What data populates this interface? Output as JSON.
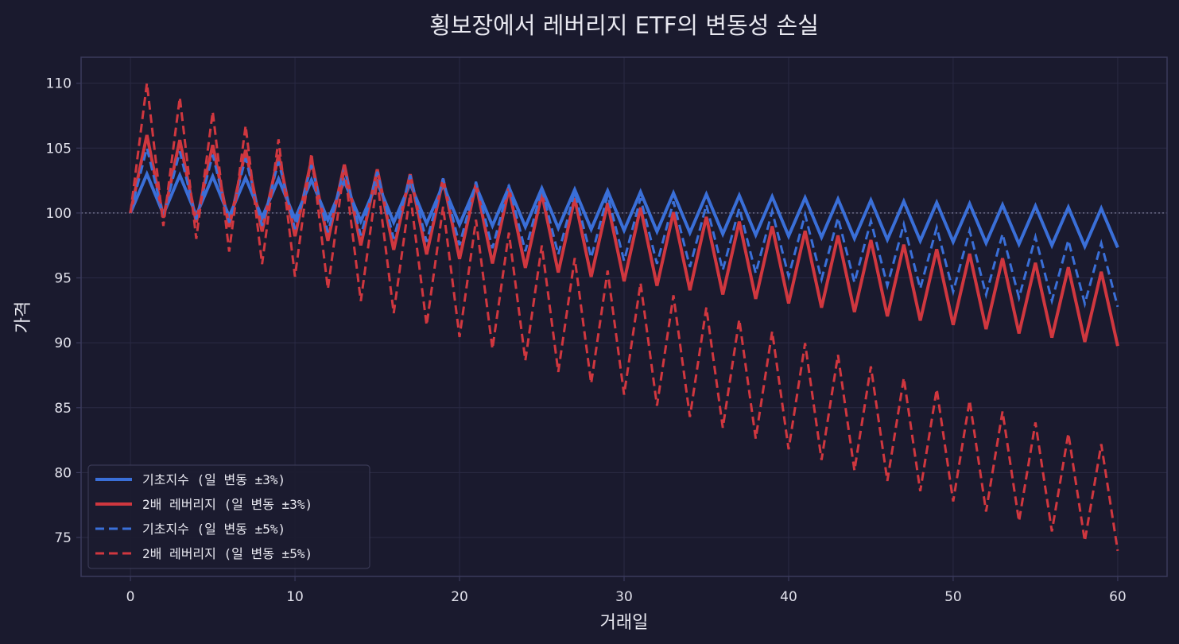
{
  "colors": {
    "background": "#1a1a2e",
    "grid": "#2a2a44",
    "frame": "#3a3a5c",
    "reference": "#7a7a96",
    "text": "#e8e8f0",
    "base_index": "#3a6fd8",
    "leveraged": "#d0373f"
  },
  "chart_data": {
    "type": "line",
    "title": "횡보장에서 레버리지 ETF의 변동성 손실",
    "xlabel": "거래일",
    "ylabel": "가격",
    "xlim": [
      -3,
      63
    ],
    "ylim": [
      72,
      112
    ],
    "x_ticks": [
      0,
      10,
      20,
      30,
      40,
      50,
      60
    ],
    "y_ticks": [
      75,
      80,
      85,
      90,
      95,
      100,
      105,
      110
    ],
    "grid": true,
    "reference_line": {
      "y": 100,
      "style": "dotted"
    },
    "legend_position": "bottom-left",
    "x": [
      0,
      1,
      2,
      3,
      4,
      5,
      6,
      7,
      8,
      9,
      10,
      11,
      12,
      13,
      14,
      15,
      16,
      17,
      18,
      19,
      20,
      21,
      22,
      23,
      24,
      25,
      26,
      27,
      28,
      29,
      30,
      31,
      32,
      33,
      34,
      35,
      36,
      37,
      38,
      39,
      40,
      41,
      42,
      43,
      44,
      45,
      46,
      47,
      48,
      49,
      50,
      51,
      52,
      53,
      54,
      55,
      56,
      57,
      58,
      59,
      60
    ],
    "series": [
      {
        "name": "기초지수 (일 변동 ±3%)",
        "color": "#3a6fd8",
        "style": "solid",
        "values": [
          100.0,
          103.0,
          99.91,
          102.91,
          99.82,
          102.82,
          99.73,
          102.72,
          99.64,
          102.63,
          99.55,
          102.54,
          99.46,
          102.45,
          99.37,
          102.35,
          99.28,
          102.26,
          99.19,
          102.17,
          99.1,
          102.08,
          99.02,
          101.99,
          98.93,
          101.9,
          98.84,
          101.8,
          98.75,
          101.71,
          98.66,
          101.62,
          98.57,
          101.53,
          98.48,
          101.44,
          98.39,
          101.35,
          98.31,
          101.26,
          98.22,
          101.17,
          98.13,
          101.07,
          98.04,
          100.98,
          97.95,
          100.89,
          97.86,
          100.8,
          97.78,
          100.71,
          97.69,
          100.62,
          97.6,
          100.53,
          97.51,
          100.44,
          97.43,
          100.35,
          97.34
        ]
      },
      {
        "name": "2배 레버리지 (일 변동 ±3%)",
        "color": "#d0373f",
        "style": "solid",
        "values": [
          100.0,
          106.0,
          99.64,
          105.62,
          99.28,
          105.24,
          98.92,
          104.86,
          98.57,
          104.48,
          98.21,
          104.1,
          97.86,
          103.73,
          97.51,
          103.36,
          97.16,
          102.99,
          96.81,
          102.62,
          96.46,
          102.25,
          96.11,
          101.88,
          95.77,
          101.51,
          95.42,
          101.15,
          95.08,
          100.78,
          94.74,
          100.42,
          94.39,
          100.06,
          94.05,
          99.7,
          93.72,
          99.34,
          93.38,
          98.98,
          93.04,
          98.62,
          92.71,
          98.27,
          92.37,
          97.92,
          92.04,
          97.56,
          91.71,
          97.21,
          91.38,
          96.86,
          91.05,
          96.51,
          90.72,
          96.16,
          90.4,
          95.82,
          90.07,
          95.47,
          89.75
        ]
      },
      {
        "name": "기초지수 (일 변동 ±5%)",
        "color": "#3a6fd8",
        "style": "dashed",
        "values": [
          100.0,
          105.0,
          99.75,
          104.74,
          99.5,
          104.48,
          99.25,
          104.22,
          99.01,
          103.96,
          98.76,
          103.7,
          98.51,
          103.44,
          98.27,
          103.18,
          98.02,
          102.92,
          97.78,
          102.67,
          97.53,
          102.41,
          97.29,
          102.15,
          97.05,
          101.9,
          96.81,
          101.65,
          96.56,
          101.39,
          96.32,
          101.14,
          96.08,
          100.89,
          95.84,
          100.63,
          95.6,
          100.38,
          95.36,
          100.13,
          95.12,
          99.88,
          94.89,
          99.63,
          94.65,
          99.38,
          94.41,
          99.13,
          94.18,
          98.89,
          93.94,
          98.64,
          93.71,
          98.39,
          93.47,
          98.15,
          93.24,
          97.9,
          93.01,
          97.66,
          92.77
        ]
      },
      {
        "name": "2배 레버리지 (일 변동 ±5%)",
        "color": "#d0373f",
        "style": "dashed",
        "values": [
          100.0,
          110.0,
          99.0,
          108.9,
          98.01,
          107.81,
          97.03,
          106.73,
          96.06,
          105.67,
          95.1,
          104.61,
          94.15,
          103.57,
          93.21,
          102.53,
          92.28,
          101.5,
          91.35,
          100.49,
          90.44,
          99.48,
          89.53,
          98.49,
          88.64,
          97.5,
          87.75,
          96.53,
          86.87,
          95.56,
          86.0,
          94.61,
          85.15,
          93.66,
          84.29,
          92.72,
          83.45,
          91.8,
          82.62,
          90.88,
          81.79,
          89.97,
          80.97,
          89.07,
          80.16,
          88.18,
          79.36,
          87.3,
          78.57,
          86.43,
          77.78,
          85.56,
          77.0,
          84.71,
          76.24,
          83.86,
          75.47,
          83.02,
          74.72,
          82.19,
          73.97
        ]
      }
    ]
  }
}
